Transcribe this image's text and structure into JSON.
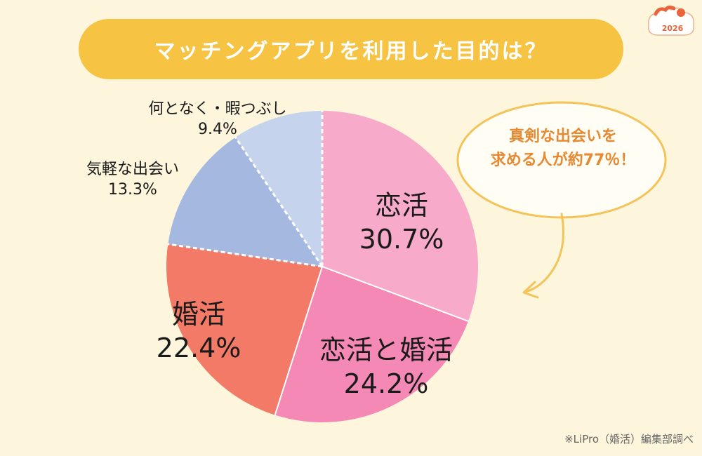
{
  "title": "マッチングアプリを利用した目的は？",
  "badge_year": "2026",
  "colors": {
    "background": "#fdf6dc",
    "banner": "#f6c343",
    "accent_orange": "#e58a33"
  },
  "chart_data": {
    "type": "pie",
    "slices": [
      {
        "label": "恋活",
        "value": 30.7,
        "value_label": "30.7%",
        "color": "#f8aacb"
      },
      {
        "label": "恋活と婚活",
        "value": 24.2,
        "value_label": "24.2%",
        "color": "#f589b5"
      },
      {
        "label": "婚活",
        "value": 22.4,
        "value_label": "22.4%",
        "color": "#f27a66"
      },
      {
        "label": "気軽な出会い",
        "value": 13.3,
        "value_label": "13.3%",
        "color": "#a5b8e0"
      },
      {
        "label": "何となく・暇つぶし",
        "value": 9.4,
        "value_label": "9.4%",
        "color": "#c6d3ec"
      }
    ],
    "start_angle": "12 o'clock",
    "direction": "clockwise"
  },
  "callout": {
    "line1": "真剣な出会いを",
    "line2": "求める人が約77％！"
  },
  "source": "※LiPro（婚活）編集部調べ"
}
